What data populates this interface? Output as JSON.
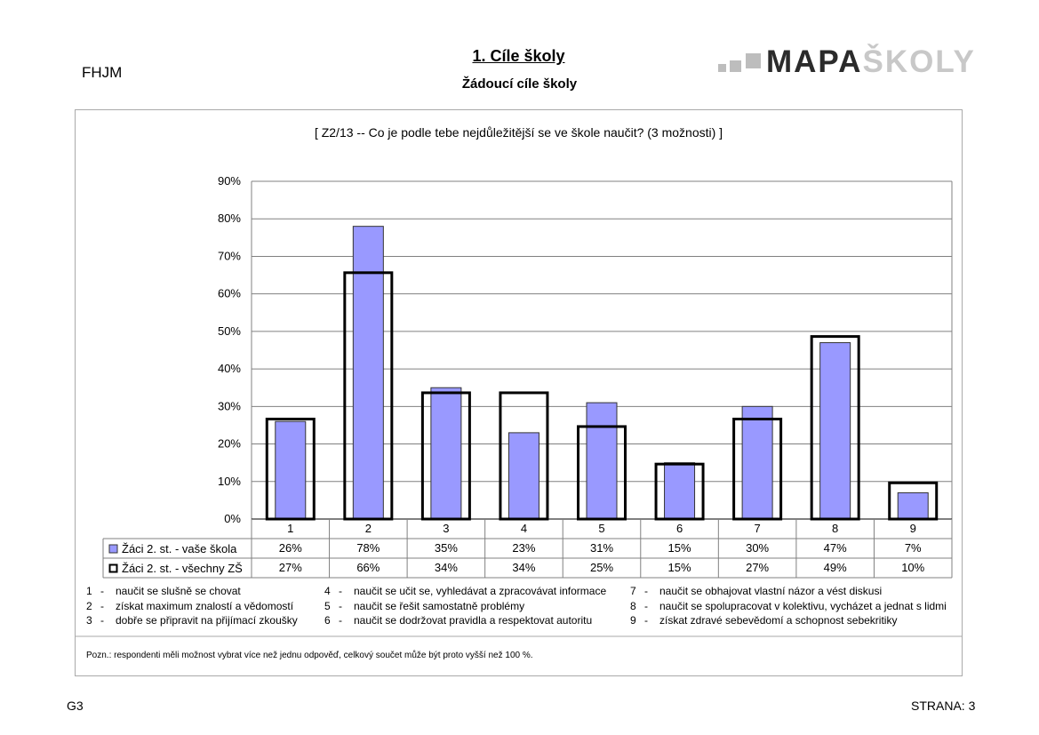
{
  "header": {
    "school_code": "FHJM",
    "title": "1. Cíle školy",
    "subtitle": "Žádoucí cíle školy",
    "logo_part1": "MAPA",
    "logo_part2": "ŠKOLY"
  },
  "chart_data": {
    "type": "bar",
    "title": "[ Z2/13 -- Co je podle tebe nejdůležitější se ve škole naučit? (3 možnosti) ]",
    "categories": [
      "1",
      "2",
      "3",
      "4",
      "5",
      "6",
      "7",
      "8",
      "9"
    ],
    "y_ticks": [
      "0%",
      "10%",
      "20%",
      "30%",
      "40%",
      "50%",
      "60%",
      "70%",
      "80%",
      "90%"
    ],
    "ylim": [
      0,
      90
    ],
    "grid": true,
    "series": [
      {
        "name": "Žáci 2. st. - vaše škola",
        "values": [
          26,
          78,
          35,
          23,
          31,
          15,
          30,
          47,
          7
        ],
        "labels": [
          "26%",
          "78%",
          "35%",
          "23%",
          "31%",
          "15%",
          "30%",
          "47%",
          "7%"
        ],
        "color": "#9999ff"
      },
      {
        "name": "Žáci 2. st. - všechny ZŠ",
        "values": [
          27,
          66,
          34,
          34,
          25,
          15,
          27,
          49,
          10
        ],
        "labels": [
          "27%",
          "66%",
          "34%",
          "34%",
          "25%",
          "15%",
          "27%",
          "49%",
          "10%"
        ],
        "color": "#000000"
      }
    ]
  },
  "legend_items": [
    {
      "num": "1",
      "text": "naučit se slušně se chovat"
    },
    {
      "num": "2",
      "text": "získat maximum znalostí a vědomostí"
    },
    {
      "num": "3",
      "text": "dobře se připravit na přijímací zkoušky"
    },
    {
      "num": "4",
      "text": "naučit se učit se, vyhledávat a zpracovávat informace"
    },
    {
      "num": "5",
      "text": "naučit se řešit samostatně problémy"
    },
    {
      "num": "6",
      "text": "naučit se dodržovat pravidla a respektovat autoritu"
    },
    {
      "num": "7",
      "text": "naučit se obhajovat vlastní názor a vést diskusi"
    },
    {
      "num": "8",
      "text": "naučit se spolupracovat v kolektivu, vycházet a jednat s lidmi"
    },
    {
      "num": "9",
      "text": "získat zdravé sebevědomí a schopnost sebekritiky"
    }
  ],
  "note": "Pozn.: respondenti měli možnost vybrat více než jednu odpověď, celkový součet může být proto vyšší než 100 %.",
  "footer": {
    "left": "G3",
    "right": "STRANA: 3"
  }
}
